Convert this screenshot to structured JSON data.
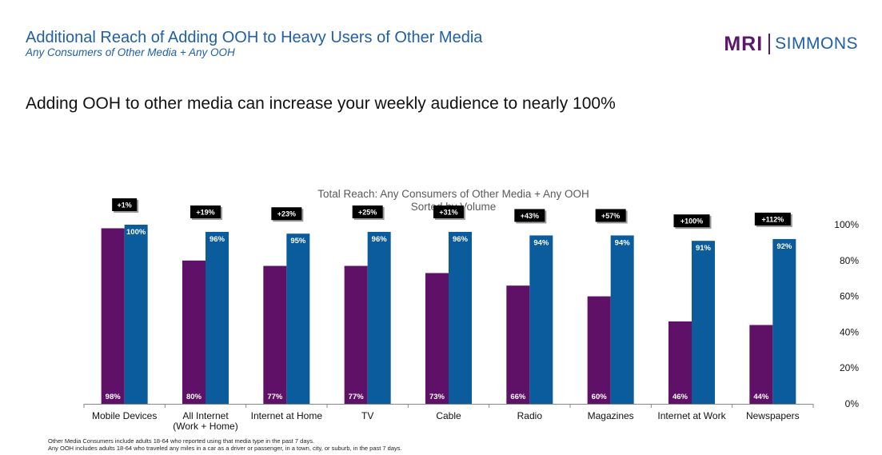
{
  "header": {
    "title": "Additional Reach of Adding OOH to Heavy Users of Other Media",
    "subtitle": "Any Consumers of Other Media + Any OOH",
    "logo_left": "MRI",
    "logo_right": "SIMMONS"
  },
  "headline": "Adding OOH to other media can increase your weekly audience to nearly 100%",
  "footnotes": [
    "Other Media Consumers include adults 18-64 who reported using that media type in the past 7 days.",
    "Any OOH includes adults 18-64 who traveled any miles in a car as a driver or passenger, in a town, city, or suburb, in the past 7 days."
  ],
  "colors": {
    "media": "#5e1166",
    "total": "#0a5c9c",
    "title": "#1f5fa6"
  },
  "chart_data": {
    "type": "bar",
    "title": "Total Reach: Any Consumers of Other Media + Any OOH",
    "subtitle": "Sorted by Volume",
    "categories": [
      [
        "Mobile Devices"
      ],
      [
        "All Internet",
        "(Work + Home)"
      ],
      [
        "Internet at Home"
      ],
      [
        "TV"
      ],
      [
        "Cable"
      ],
      [
        "Radio"
      ],
      [
        "Magazines"
      ],
      [
        "Internet at Work"
      ],
      [
        "Newspapers"
      ]
    ],
    "series": [
      {
        "name": "Any Consumers of Other Media",
        "values": [
          98,
          80,
          77,
          77,
          73,
          66,
          60,
          46,
          44
        ],
        "labels": [
          "98%",
          "80%",
          "77%",
          "77%",
          "73%",
          "66%",
          "60%",
          "46%",
          "44%"
        ]
      },
      {
        "name": "Any Consumers of Other Media + Any OOH",
        "values": [
          100,
          96,
          95,
          96,
          96,
          94,
          94,
          91,
          92
        ],
        "labels": [
          "100%",
          "96%",
          "95%",
          "96%",
          "96%",
          "94%",
          "94%",
          "91%",
          "92%"
        ]
      }
    ],
    "lift_labels": [
      "+1%",
      "+19%",
      "+23%",
      "+25%",
      "+31%",
      "+43%",
      "+57%",
      "+100%",
      "+112%"
    ],
    "yaxis": {
      "position": "right",
      "ticks": [
        "0%",
        "20%",
        "40%",
        "60%",
        "80%",
        "100%"
      ],
      "tick_values": [
        0,
        20,
        40,
        60,
        80,
        100
      ]
    },
    "ylim": [
      0,
      100
    ]
  }
}
